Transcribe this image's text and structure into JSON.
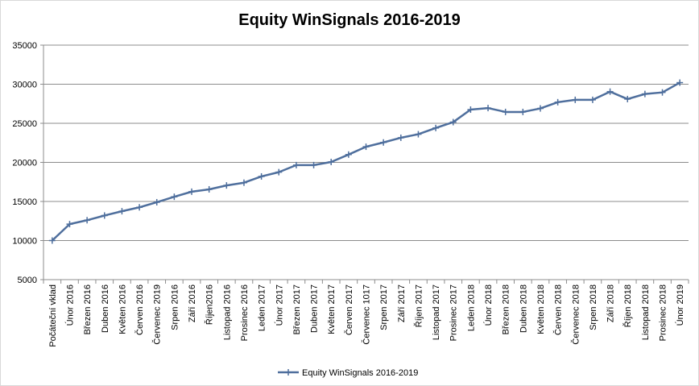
{
  "chart_data": {
    "type": "line",
    "title": "Equity WinSignals 2016-2019",
    "xlabel": "",
    "ylabel": "",
    "ylim": [
      5000,
      35000
    ],
    "yticks": [
      5000,
      10000,
      15000,
      20000,
      25000,
      30000,
      35000
    ],
    "ytick_labels": [
      "5000",
      "10000",
      "15000",
      "20000",
      "25000",
      "30000",
      "35000"
    ],
    "grid": true,
    "legend_position": "bottom",
    "categories": [
      "Počáteční vklad",
      "Únor 2016",
      "Březen 2016",
      "Duben 2016",
      "Květen 2016",
      "Červen 2016",
      "Červenec 2019",
      "Srpen 2016",
      "Září 2016",
      "Říjen2016",
      "Listopad 2016",
      "Prosinec 2016",
      "Leden 2017",
      "Únor 2017",
      "Březen 2017",
      "Duben 2017",
      "Květen 2017",
      "Červen 2017",
      "Červenec 1017",
      "Srpen 2017",
      "Září 2017",
      "Říjen 2017",
      "Listopad 2017",
      "Prosinec 2017",
      "Leden 2018",
      "Únor 2018",
      "Březen 2018",
      "Duben 2018",
      "Květen 2018",
      "Červen 2018",
      "Červenec 2018",
      "Srpen 2018",
      "Září 2018",
      "Říjen 2018",
      "Listopad 2018",
      "Prosinec 2018",
      "Únor 2019"
    ],
    "series": [
      {
        "name": "Equity WinSignals 2016-2019",
        "color": "#4f6f9d",
        "values": [
          10000,
          12100,
          12600,
          13200,
          13750,
          14250,
          14900,
          15600,
          16250,
          16550,
          17050,
          17400,
          18200,
          18750,
          19650,
          19650,
          20050,
          21000,
          22000,
          22550,
          23150,
          23600,
          24400,
          25150,
          26750,
          26950,
          26450,
          26450,
          26900,
          27700,
          28000,
          28000,
          29050,
          28100,
          28750,
          28950,
          30200
        ]
      }
    ]
  }
}
